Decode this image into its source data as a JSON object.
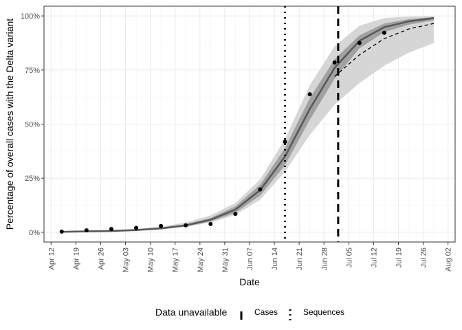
{
  "chart_data": {
    "type": "line",
    "title": "",
    "xlabel": "Date",
    "ylabel": "Percentage of overall cases with the Delta variant",
    "x_type": "date",
    "xlim": [
      "2021-04-10",
      "2021-08-04"
    ],
    "ylim": [
      -0.045,
      1.045
    ],
    "grid": true,
    "legend_position": "bottom",
    "x_ticks": [
      {
        "date": "2021-04-12",
        "label": "Apr 12"
      },
      {
        "date": "2021-04-19",
        "label": "Apr 19"
      },
      {
        "date": "2021-04-26",
        "label": "Apr 26"
      },
      {
        "date": "2021-05-03",
        "label": "May 03"
      },
      {
        "date": "2021-05-10",
        "label": "May 10"
      },
      {
        "date": "2021-05-17",
        "label": "May 17"
      },
      {
        "date": "2021-05-24",
        "label": "May 24"
      },
      {
        "date": "2021-05-31",
        "label": "May 31"
      },
      {
        "date": "2021-06-07",
        "label": "Jun 07"
      },
      {
        "date": "2021-06-14",
        "label": "Jun 14"
      },
      {
        "date": "2021-06-21",
        "label": "Jun 21"
      },
      {
        "date": "2021-06-28",
        "label": "Jun 28"
      },
      {
        "date": "2021-07-05",
        "label": "Jul 05"
      },
      {
        "date": "2021-07-12",
        "label": "Jul 12"
      },
      {
        "date": "2021-07-19",
        "label": "Jul 19"
      },
      {
        "date": "2021-07-26",
        "label": "Jul 26"
      },
      {
        "date": "2021-08-02",
        "label": "Aug 02"
      }
    ],
    "y_ticks": [
      {
        "value": 0,
        "label": "0%"
      },
      {
        "value": 0.25,
        "label": "25%"
      },
      {
        "value": 0.5,
        "label": "50%"
      },
      {
        "value": 0.75,
        "label": "75%"
      },
      {
        "value": 1.0,
        "label": "100%"
      }
    ],
    "observed_points": {
      "x": [
        "2021-04-15",
        "2021-04-22",
        "2021-04-29",
        "2021-05-06",
        "2021-05-13",
        "2021-05-20",
        "2021-05-27",
        "2021-06-03",
        "2021-06-10",
        "2021-06-17",
        "2021-06-24",
        "2021-07-01",
        "2021-07-08",
        "2021-07-15"
      ],
      "y": [
        0.003,
        0.009,
        0.015,
        0.02,
        0.029,
        0.032,
        0.038,
        0.085,
        0.198,
        0.418,
        0.638,
        0.785,
        0.875,
        0.922
      ]
    },
    "series": [
      {
        "style": "solid",
        "x": [
          "2021-04-15",
          "2021-04-22",
          "2021-04-29",
          "2021-05-06",
          "2021-05-13",
          "2021-05-20",
          "2021-05-27",
          "2021-06-03",
          "2021-06-10",
          "2021-06-17",
          "2021-06-24",
          "2021-07-01",
          "2021-07-08",
          "2021-07-15",
          "2021-07-22",
          "2021-07-29"
        ],
        "y": [
          0.002,
          0.004,
          0.006,
          0.01,
          0.018,
          0.032,
          0.058,
          0.105,
          0.195,
          0.35,
          0.57,
          0.76,
          0.885,
          0.948,
          0.975,
          0.99
        ],
        "inner_band": {
          "lower": [
            0.0015,
            0.003,
            0.005,
            0.008,
            0.015,
            0.027,
            0.05,
            0.09,
            0.17,
            0.31,
            0.52,
            0.71,
            0.85,
            0.925,
            0.96,
            0.98
          ],
          "upper": [
            0.0025,
            0.005,
            0.008,
            0.012,
            0.021,
            0.037,
            0.066,
            0.12,
            0.22,
            0.39,
            0.62,
            0.8,
            0.91,
            0.965,
            0.985,
            0.995
          ]
        }
      },
      {
        "style": "dashed",
        "x": [
          "2021-07-01",
          "2021-07-08",
          "2021-07-15",
          "2021-07-22",
          "2021-07-29"
        ],
        "y": [
          0.72,
          0.82,
          0.895,
          0.94,
          0.965
        ],
        "outer_band": {
          "x": [
            "2021-04-15",
            "2021-04-22",
            "2021-04-29",
            "2021-05-06",
            "2021-05-13",
            "2021-05-20",
            "2021-05-27",
            "2021-06-03",
            "2021-06-10",
            "2021-06-17",
            "2021-06-24",
            "2021-07-01",
            "2021-07-08",
            "2021-07-15",
            "2021-07-22",
            "2021-07-29"
          ],
          "lower": [
            0.001,
            0.002,
            0.004,
            0.007,
            0.013,
            0.024,
            0.045,
            0.08,
            0.15,
            0.28,
            0.45,
            0.59,
            0.69,
            0.77,
            0.83,
            0.875
          ],
          "upper": [
            0.004,
            0.007,
            0.011,
            0.016,
            0.026,
            0.045,
            0.078,
            0.135,
            0.245,
            0.43,
            0.68,
            0.86,
            0.955,
            0.99,
            0.997,
            0.999
          ]
        }
      }
    ],
    "vertical_lines": [
      {
        "label": "Cases",
        "date": "2021-07-02",
        "style": "dashed"
      },
      {
        "label": "Sequences",
        "date": "2021-06-17",
        "style": "dotted"
      }
    ],
    "legend": {
      "title": "Data unavailable",
      "items": [
        {
          "label": "Cases",
          "style": "dashed"
        },
        {
          "label": "Sequences",
          "style": "dotted"
        }
      ]
    }
  }
}
